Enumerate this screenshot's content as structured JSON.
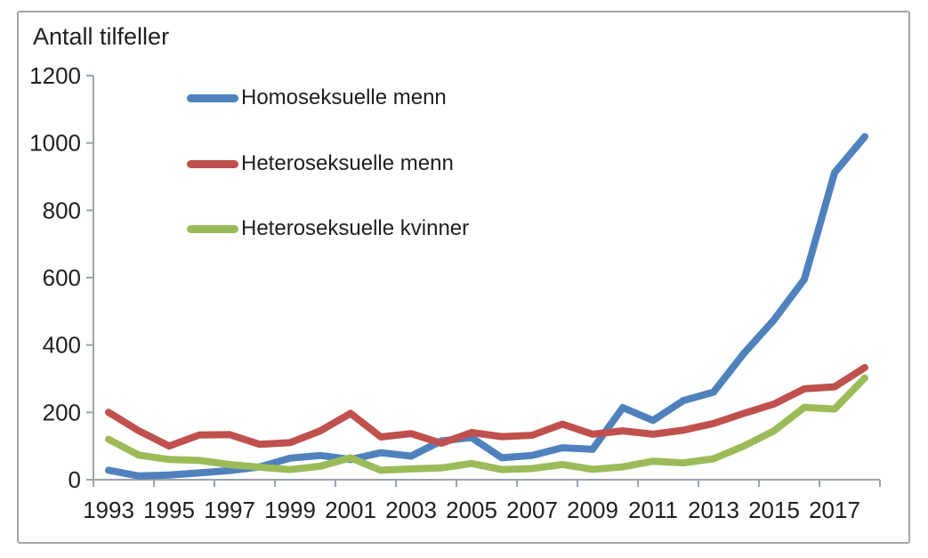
{
  "chart_data": {
    "type": "line",
    "title": "Antall tilfeller",
    "xlabel": "",
    "ylabel": "Antall tilfeller",
    "ylim": [
      0,
      1200
    ],
    "y_tick_step": 200,
    "y_tick_labels": [
      "0",
      "200",
      "400",
      "600",
      "800",
      "1000",
      "1200"
    ],
    "grid": false,
    "legend_position": "top-left-inside",
    "axis_color": "#9ba3ad",
    "text_color": "#1f1f1f",
    "frame_color": "#a6a6a6",
    "x": [
      1993,
      1994,
      1995,
      1996,
      1997,
      1998,
      1999,
      2000,
      2001,
      2002,
      2003,
      2004,
      2005,
      2006,
      2007,
      2008,
      2009,
      2010,
      2011,
      2012,
      2013,
      2014,
      2015,
      2016,
      2017,
      2018
    ],
    "x_tick_labels": [
      "1993",
      "1995",
      "1997",
      "1999",
      "2001",
      "2003",
      "2005",
      "2007",
      "2009",
      "2011",
      "2013",
      "2015",
      "2017"
    ],
    "series": [
      {
        "name": "Homoseksuelle menn",
        "color": "#4F81BD",
        "values": [
          28,
          11,
          14,
          20,
          27,
          38,
          64,
          72,
          60,
          80,
          70,
          115,
          125,
          65,
          72,
          95,
          90,
          214,
          176,
          235,
          260,
          375,
          475,
          595,
          912,
          1019
        ]
      },
      {
        "name": "Heteroseksuelle menn",
        "color": "#C0504D",
        "values": [
          200,
          145,
          100,
          133,
          134,
          105,
          110,
          145,
          197,
          127,
          137,
          108,
          140,
          128,
          132,
          165,
          135,
          145,
          135,
          147,
          167,
          197,
          225,
          270,
          276,
          333
        ]
      },
      {
        "name": "Heteroseksuelle kvinner",
        "color": "#9BBB59",
        "values": [
          120,
          73,
          60,
          57,
          45,
          37,
          30,
          40,
          65,
          28,
          32,
          35,
          48,
          30,
          33,
          45,
          31,
          38,
          55,
          50,
          62,
          100,
          145,
          215,
          210,
          302
        ]
      }
    ]
  }
}
